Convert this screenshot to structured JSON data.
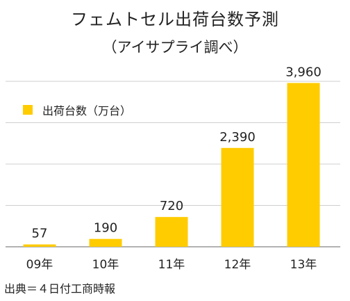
{
  "chart_data": {
    "type": "bar",
    "title": "フェムトセル出荷台数予測",
    "subtitle": "（アイサプライ調べ）",
    "categories": [
      "09年",
      "10年",
      "11年",
      "12年",
      "13年"
    ],
    "series": [
      {
        "name": "出荷台数（万台）",
        "values": [
          57,
          190,
          720,
          2390,
          3960
        ]
      }
    ],
    "value_labels": [
      "57",
      "190",
      "720",
      "2,390",
      "3,960"
    ],
    "ylim": [
      0,
      4000
    ],
    "gridlines": [
      0,
      1000,
      2000,
      3000,
      4000
    ],
    "grid": true,
    "legend_position": "top-left",
    "bar_color": "#FFCC00",
    "grid_color": "#cfcfcf"
  },
  "source": "出典＝４日付工商時報"
}
